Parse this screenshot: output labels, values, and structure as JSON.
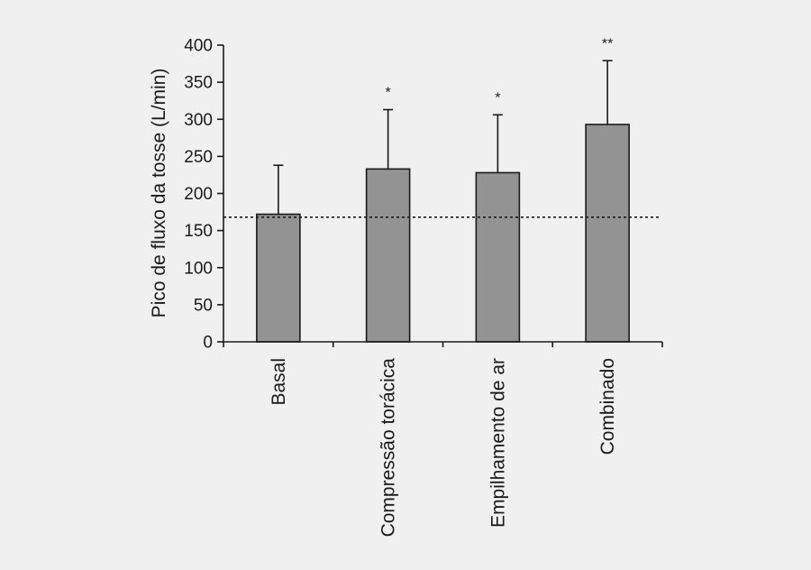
{
  "chart_data": {
    "type": "bar",
    "title": "",
    "xlabel": "",
    "ylabel": "Pico de fluxo da tosse (L/min)",
    "ylim": [
      0,
      400
    ],
    "yticks": [
      0,
      50,
      100,
      150,
      200,
      250,
      300,
      350,
      400
    ],
    "categories": [
      "Basal",
      "Compressão torácica",
      "Empilhamento de ar",
      "Combinado"
    ],
    "values": [
      172,
      233,
      228,
      293
    ],
    "errors_upper": [
      66,
      80,
      78,
      86
    ],
    "significance": [
      "",
      "*",
      "*",
      "**"
    ],
    "reference_line": 168,
    "grid": false,
    "bar_color": "#939393",
    "line_color": "#1a1a1a",
    "background": "#f0f0f0"
  }
}
